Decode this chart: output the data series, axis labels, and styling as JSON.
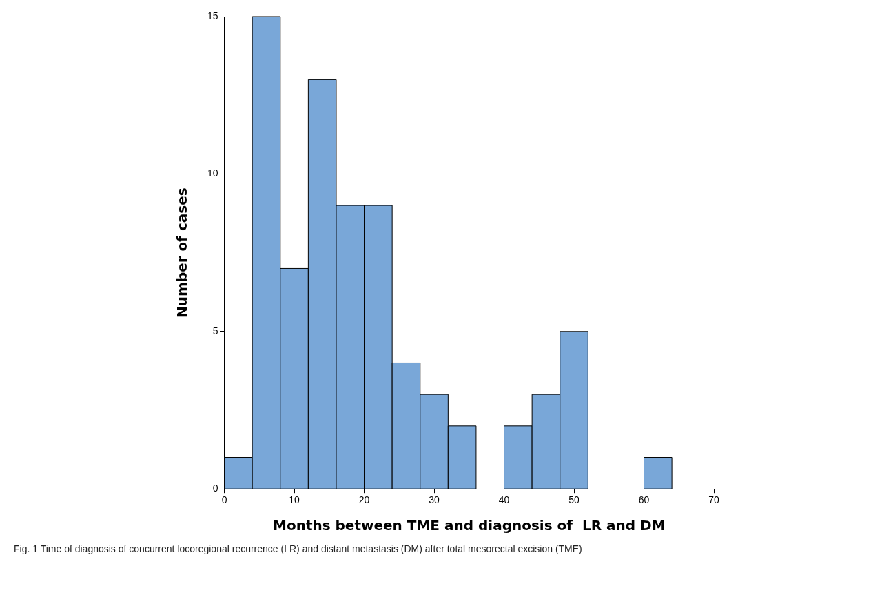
{
  "chart_data": {
    "type": "histogram",
    "xlabel": "Months between TME and diagnosis of  LR and DM",
    "ylabel": "Number of cases",
    "bins": [
      0,
      4,
      8,
      12,
      16,
      20,
      24,
      28,
      32,
      36,
      40,
      44,
      48,
      52,
      56,
      60,
      64
    ],
    "values": [
      1,
      15,
      7,
      13,
      9,
      9,
      4,
      3,
      2,
      0,
      2,
      3,
      5,
      0,
      0,
      1
    ],
    "color": "#79a7d8",
    "xlim": [
      0,
      70
    ],
    "xticks": [
      0,
      10,
      20,
      30,
      40,
      50,
      60,
      70
    ],
    "ylim": [
      0,
      15
    ],
    "yticks": [
      0,
      5,
      10,
      15
    ],
    "grid": false,
    "legend": false,
    "annotations": [
      "Fig. 1  Time of diagnosis of concurrent locoregional recurrence (LR) and distant metastasis (DM) after total mesorectal excision (TME)"
    ]
  }
}
